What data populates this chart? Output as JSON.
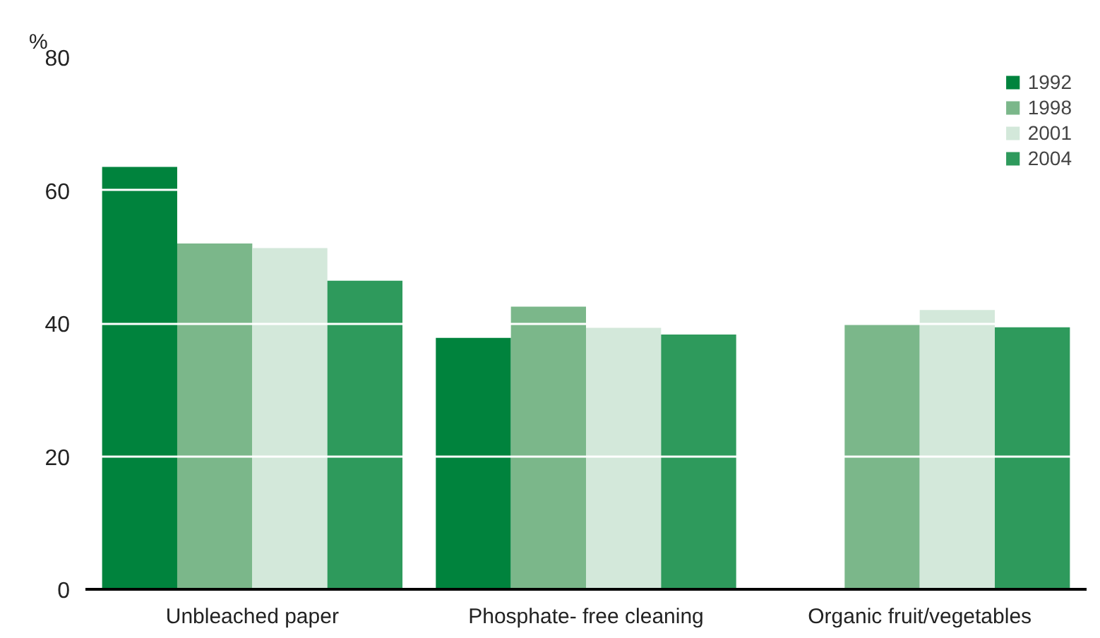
{
  "chart_data": {
    "type": "bar",
    "ylabel": "%",
    "categories": [
      "Unbleached paper",
      "Phosphate- free cleaning",
      "Organic fruit/vegetables"
    ],
    "series": [
      {
        "name": "1992",
        "color": "#00833d",
        "values": [
          63.5,
          37.8,
          null
        ]
      },
      {
        "name": "1998",
        "color": "#7bb78a",
        "values": [
          52,
          42.5,
          39.8
        ]
      },
      {
        "name": "2001",
        "color": "#d3e8da",
        "values": [
          51.3,
          39.3,
          42
        ]
      },
      {
        "name": "2004",
        "color": "#2e9a5c",
        "values": [
          46.4,
          38.3,
          39.4
        ]
      }
    ],
    "ylim": [
      0,
      80
    ],
    "yticks": [
      0,
      20,
      40,
      60,
      80
    ],
    "grid": "y",
    "legend": "top right"
  }
}
